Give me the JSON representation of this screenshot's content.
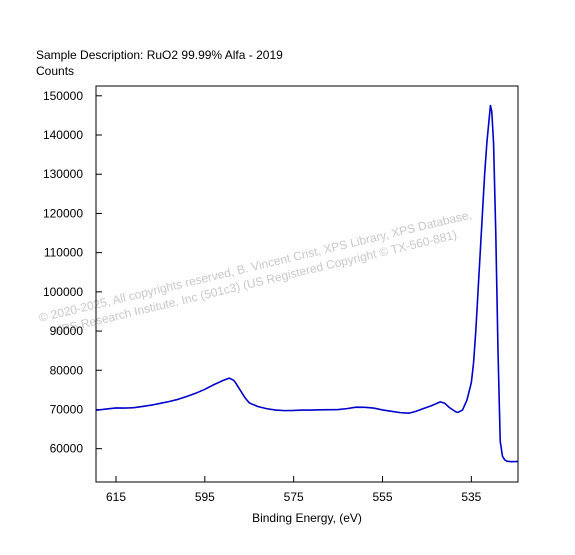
{
  "chart_data": {
    "type": "line",
    "title": "Sample Description:  RuO2 99.99% Alfa - 2019",
    "ylabel": "Counts",
    "xlabel": "Binding Energy, (eV)",
    "x_reversed": true,
    "xlim": [
      619.5,
      524.5
    ],
    "ylim": [
      51500,
      152500
    ],
    "x_ticks": [
      615,
      595,
      575,
      555,
      535
    ],
    "y_ticks": [
      60000,
      70000,
      80000,
      90000,
      100000,
      110000,
      120000,
      130000,
      140000,
      150000
    ],
    "grid": false,
    "line_color": "#0000cc",
    "watermark": {
      "line1": "©  2020-2025,  All copyrights reserved,   B. Vincent Crist,  XPS Library, XPS Database,",
      "line2": "XPS Research Institute, Inc (501c3)   (US Registered Copyright © TX-560-881)"
    },
    "series": [
      {
        "x": [
          619.5,
          617,
          615,
          613,
          611,
          609,
          607,
          605,
          603,
          601,
          599,
          597,
          595,
          593,
          591,
          589.5,
          588.5,
          588,
          587,
          586,
          585,
          583,
          581,
          579,
          577,
          575,
          573,
          571,
          569,
          567,
          565,
          563,
          561,
          559,
          557,
          555,
          553,
          551,
          549,
          547.5,
          546,
          544,
          542,
          541,
          540,
          539,
          538.5,
          538,
          537,
          536,
          535,
          534.5,
          534,
          533.5,
          533,
          532.5,
          532,
          531.5,
          531,
          530.7,
          530.4,
          530,
          529.5,
          529,
          528.5,
          528,
          527.5,
          527,
          526,
          525,
          524.5
        ],
        "y": [
          69800,
          70200,
          70500,
          70500,
          70600,
          70900,
          71200,
          71600,
          72000,
          72500,
          73200,
          74000,
          75000,
          76200,
          77300,
          78000,
          77500,
          76800,
          75000,
          73200,
          71800,
          70800,
          70200,
          69800,
          69600,
          69600,
          69700,
          69700,
          69800,
          69900,
          70000,
          70300,
          70700,
          70700,
          70500,
          70000,
          69600,
          69200,
          69000,
          69400,
          70000,
          70800,
          71800,
          71500,
          70500,
          69800,
          69500,
          69400,
          70000,
          72500,
          77000,
          82000,
          90000,
          100000,
          110000,
          120000,
          130000,
          138000,
          144000,
          147500,
          146000,
          138000,
          115000,
          85000,
          62000,
          58200,
          57200,
          56800,
          56600,
          56600,
          56600
        ]
      }
    ]
  }
}
